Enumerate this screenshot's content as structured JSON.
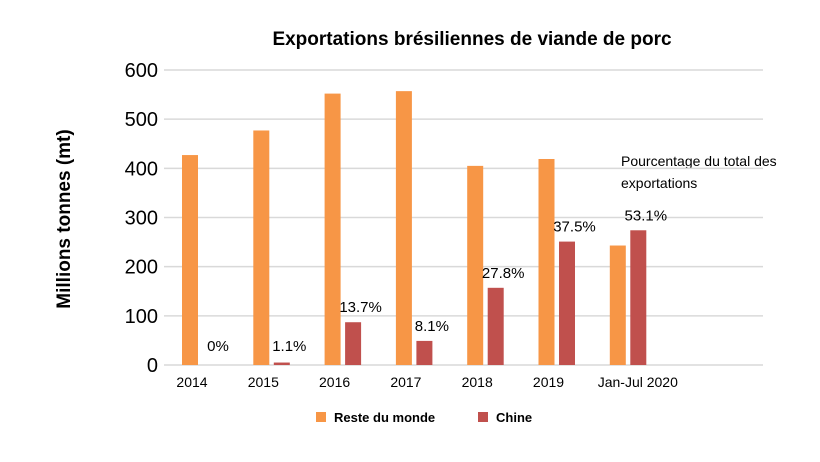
{
  "chart_data": {
    "type": "bar",
    "title": "Exportations brésiliennes de viande de porc",
    "xlabel": "",
    "ylabel": "Millions tonnes (mt)",
    "ylim": [
      0,
      600
    ],
    "yticks": [
      "0",
      "100",
      "200",
      "300",
      "400",
      "500",
      "600"
    ],
    "grid": true,
    "legend_position": "bottom",
    "categories": [
      "2014",
      "2015",
      "2016",
      "2017",
      "2018",
      "2019",
      "Jan-Jul 2020"
    ],
    "series": [
      {
        "name": "Reste du monde",
        "color": "#f79646",
        "values": [
          427,
          477,
          552,
          557,
          405,
          419,
          243
        ]
      },
      {
        "name": "Chine",
        "color": "#c0504d",
        "values": [
          0,
          5,
          87,
          49,
          157,
          251,
          274
        ]
      }
    ],
    "data_labels": [
      "0%",
      "1.1%",
      "13.7%",
      "8.1%",
      "27.8%",
      "37.5%",
      "53.1%"
    ],
    "annotation": [
      "Pourcentage du total des",
      "exportations"
    ]
  }
}
